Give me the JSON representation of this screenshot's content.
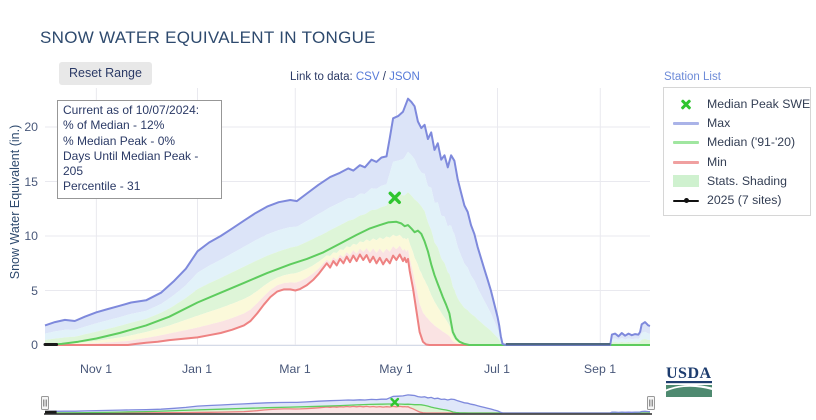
{
  "header": {
    "title": "SNOW WATER EQUIVALENT IN TONGUE"
  },
  "toolbar": {
    "reset_button": "Reset Range",
    "link_prefix": "Link to data: ",
    "csv_link": "CSV",
    "separator": " / ",
    "json_link": "JSON",
    "station_list_link": "Station List"
  },
  "info_box": {
    "lines": [
      "Current as of 10/07/2024:",
      "% of Median - 12%",
      "% Median Peak - 0%",
      "Days Until Median Peak - 205",
      "Percentile - 31"
    ]
  },
  "legend": {
    "items": [
      {
        "label": "Median Peak SWE",
        "symbol": "x-marker",
        "color": "#2fc52f"
      },
      {
        "label": "Max",
        "symbol": "line",
        "color": "#aab3e8"
      },
      {
        "label": "Median ('91-'20)",
        "symbol": "line",
        "color": "#a0e6a0"
      },
      {
        "label": "Min",
        "symbol": "line",
        "color": "#f0a0a0"
      },
      {
        "label": "Stats. Shading",
        "symbol": "patch",
        "color": "#cff1cf"
      },
      {
        "label": "2025 (7 sites)",
        "symbol": "line-marker",
        "color": "#111111"
      }
    ]
  },
  "footer": {
    "usda_label": "USDA"
  },
  "chart_data": {
    "type": "area",
    "title": "SNOW WATER EQUIVALENT IN TONGUE",
    "xlabel": "",
    "ylabel": "Snow Water Equivalent (in.)",
    "ylim": [
      0,
      24
    ],
    "yticks": [
      0,
      5,
      10,
      15,
      20
    ],
    "x_unit": "days since Oct 1 (water year Oct 2024 - Sep 2025)",
    "xticks": [
      {
        "day": 31,
        "label": "Nov 1"
      },
      {
        "day": 92,
        "label": "Jan 1"
      },
      {
        "day": 151,
        "label": "Mar 1"
      },
      {
        "day": 212,
        "label": "May 1"
      },
      {
        "day": 273,
        "label": "Jul 1"
      },
      {
        "day": 335,
        "label": "Sep 1"
      }
    ],
    "grid": true,
    "legend_position": "right-top",
    "median_peak_marker": {
      "label": "Median Peak SWE",
      "day": 211,
      "value": 13.5,
      "color": "#2fc52f"
    },
    "stats_shading_band_colors": [
      "#dce4f8",
      "#e2f2f9",
      "#def5d8",
      "#fbf9da",
      "#fae3e3"
    ],
    "series": [
      {
        "name": "Max",
        "color": "#7e89dc",
        "points": [
          [
            0,
            1.8
          ],
          [
            6,
            2.1
          ],
          [
            12,
            2.3
          ],
          [
            18,
            2.2
          ],
          [
            24,
            2.6
          ],
          [
            31,
            3.0
          ],
          [
            38,
            3.3
          ],
          [
            45,
            3.6
          ],
          [
            52,
            3.9
          ],
          [
            61,
            4.1
          ],
          [
            70,
            4.8
          ],
          [
            78,
            5.9
          ],
          [
            85,
            7.0
          ],
          [
            92,
            8.6
          ],
          [
            99,
            9.4
          ],
          [
            106,
            10.0
          ],
          [
            113,
            10.7
          ],
          [
            120,
            11.4
          ],
          [
            127,
            12.1
          ],
          [
            134,
            12.7
          ],
          [
            141,
            13.1
          ],
          [
            148,
            13.3
          ],
          [
            152,
            13.2
          ],
          [
            158,
            13.9
          ],
          [
            165,
            14.7
          ],
          [
            172,
            15.4
          ],
          [
            178,
            15.8
          ],
          [
            183,
            16.2
          ],
          [
            186,
            16.0
          ],
          [
            190,
            16.5
          ],
          [
            193,
            16.3
          ],
          [
            197,
            17.0
          ],
          [
            200,
            16.8
          ],
          [
            203,
            17.2
          ],
          [
            206,
            17.3
          ],
          [
            208,
            19.0
          ],
          [
            210,
            20.8
          ],
          [
            213,
            21.0
          ],
          [
            216,
            21.4
          ],
          [
            219,
            22.6
          ],
          [
            221,
            22.3
          ],
          [
            223,
            21.9
          ],
          [
            225,
            20.5
          ],
          [
            227,
            19.9
          ],
          [
            229,
            20.2
          ],
          [
            231,
            18.9
          ],
          [
            233,
            19.5
          ],
          [
            235,
            17.9
          ],
          [
            237,
            18.5
          ],
          [
            239,
            17.0
          ],
          [
            241,
            17.4
          ],
          [
            243,
            16.3
          ],
          [
            245,
            17.4
          ],
          [
            247,
            16.9
          ],
          [
            249,
            15.2
          ],
          [
            251,
            14.0
          ],
          [
            253,
            12.8
          ],
          [
            255,
            12.2
          ],
          [
            257,
            11.0
          ],
          [
            259,
            10.2
          ],
          [
            261,
            9.0
          ],
          [
            263,
            8.0
          ],
          [
            265,
            7.0
          ],
          [
            267,
            6.0
          ],
          [
            269,
            5.0
          ],
          [
            271,
            3.8
          ],
          [
            273,
            2.6
          ],
          [
            274,
            1.8
          ],
          [
            275,
            0.8
          ],
          [
            276,
            0.1
          ],
          [
            278,
            0
          ],
          [
            341,
            0
          ],
          [
            342,
            0.95
          ],
          [
            344,
            1.05
          ],
          [
            346,
            0.8
          ],
          [
            348,
            1.1
          ],
          [
            350,
            0.85
          ],
          [
            352,
            1.05
          ],
          [
            354,
            0.9
          ],
          [
            356,
            1.0
          ],
          [
            358,
            0.95
          ],
          [
            359,
            1.2
          ],
          [
            360,
            1.9
          ],
          [
            362,
            2.1
          ],
          [
            364,
            1.8
          ],
          [
            365,
            1.75
          ]
        ]
      },
      {
        "name": "Median ('91-'20)",
        "color": "#5ecc5e",
        "points": [
          [
            0,
            0
          ],
          [
            10,
            0.1
          ],
          [
            20,
            0.3
          ],
          [
            31,
            0.6
          ],
          [
            45,
            1.1
          ],
          [
            61,
            1.8
          ],
          [
            75,
            2.6
          ],
          [
            92,
            3.9
          ],
          [
            106,
            4.8
          ],
          [
            120,
            5.7
          ],
          [
            134,
            6.6
          ],
          [
            148,
            7.4
          ],
          [
            158,
            7.9
          ],
          [
            168,
            8.5
          ],
          [
            178,
            9.3
          ],
          [
            188,
            10.1
          ],
          [
            196,
            10.7
          ],
          [
            202,
            11.0
          ],
          [
            207,
            11.25
          ],
          [
            212,
            11.3
          ],
          [
            215,
            11.15
          ],
          [
            217,
            10.9
          ],
          [
            219,
            11.0
          ],
          [
            221,
            10.7
          ],
          [
            223,
            10.35
          ],
          [
            225,
            10.5
          ],
          [
            227,
            10.2
          ],
          [
            229,
            9.5
          ],
          [
            231,
            8.6
          ],
          [
            233,
            7.4
          ],
          [
            235,
            6.4
          ],
          [
            237,
            5.6
          ],
          [
            239,
            4.8
          ],
          [
            240,
            4.4
          ],
          [
            242,
            3.7
          ],
          [
            244,
            2.9
          ],
          [
            246,
            1.2
          ],
          [
            248,
            0.6
          ],
          [
            250,
            0.3
          ],
          [
            253,
            0.1
          ],
          [
            256,
            0
          ],
          [
            365,
            0
          ]
        ]
      },
      {
        "name": "Min",
        "color": "#ee8282",
        "points": [
          [
            0,
            0
          ],
          [
            50,
            0
          ],
          [
            55,
            0.1
          ],
          [
            61,
            0.2
          ],
          [
            68,
            0.3
          ],
          [
            75,
            0.45
          ],
          [
            82,
            0.55
          ],
          [
            92,
            0.7
          ],
          [
            99,
            0.9
          ],
          [
            106,
            1.1
          ],
          [
            113,
            1.4
          ],
          [
            120,
            1.8
          ],
          [
            124,
            2.2
          ],
          [
            128,
            2.9
          ],
          [
            132,
            3.7
          ],
          [
            136,
            4.4
          ],
          [
            140,
            4.9
          ],
          [
            144,
            5.1
          ],
          [
            148,
            5.1
          ],
          [
            151,
            5.0
          ],
          [
            154,
            5.15
          ],
          [
            158,
            5.5
          ],
          [
            162,
            6.0
          ],
          [
            165,
            6.5
          ],
          [
            168,
            7.1
          ],
          [
            170,
            7.5
          ],
          [
            172,
            7.1
          ],
          [
            174,
            7.7
          ],
          [
            176,
            7.3
          ],
          [
            178,
            7.9
          ],
          [
            180,
            7.5
          ],
          [
            182,
            8.1
          ],
          [
            184,
            7.6
          ],
          [
            186,
            8.2
          ],
          [
            188,
            7.7
          ],
          [
            190,
            8.3
          ],
          [
            192,
            7.8
          ],
          [
            194,
            8.25
          ],
          [
            196,
            7.6
          ],
          [
            198,
            8.1
          ],
          [
            200,
            7.5
          ],
          [
            202,
            8.0
          ],
          [
            204,
            7.4
          ],
          [
            206,
            7.9
          ],
          [
            208,
            7.5
          ],
          [
            210,
            8.2
          ],
          [
            212,
            7.8
          ],
          [
            214,
            8.3
          ],
          [
            216,
            7.7
          ],
          [
            217,
            8.0
          ],
          [
            218,
            7.6
          ],
          [
            219,
            7.9
          ],
          [
            220,
            6.8
          ],
          [
            222,
            5.2
          ],
          [
            224,
            3.2
          ],
          [
            226,
            1.2
          ],
          [
            228,
            0.3
          ],
          [
            230,
            0.05
          ],
          [
            232,
            0
          ],
          [
            365,
            0
          ]
        ]
      },
      {
        "name": "2025 (7 sites)",
        "color": "#1a1a1a",
        "points": [
          [
            0,
            0.05
          ],
          [
            7,
            0.05
          ]
        ]
      }
    ]
  }
}
